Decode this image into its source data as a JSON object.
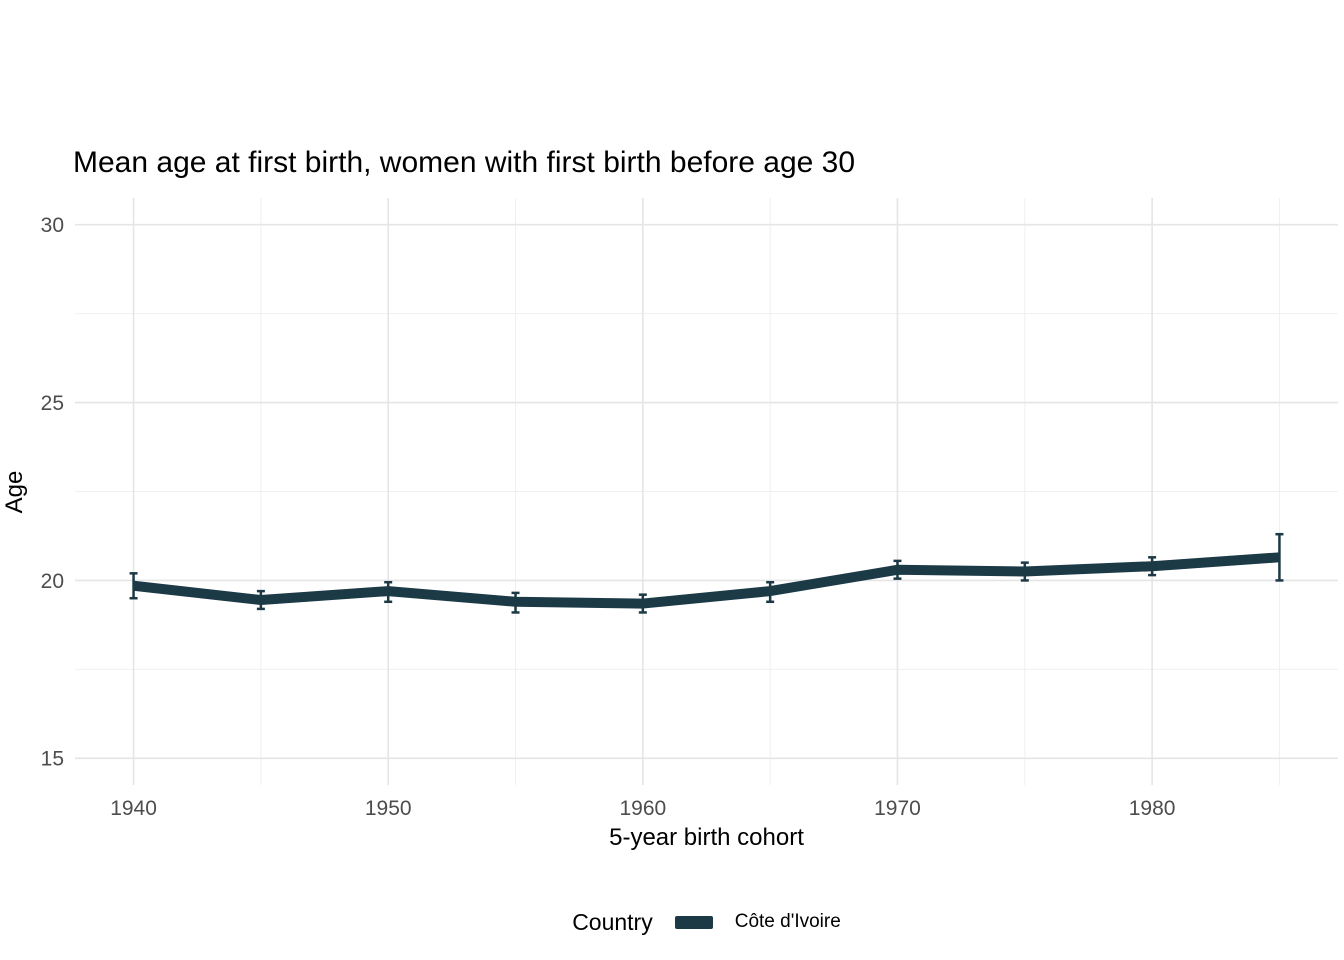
{
  "chart_data": {
    "type": "line",
    "title": "Mean age at first birth, women with first birth before age 30",
    "xlabel": "5-year birth cohort",
    "ylabel": "Age",
    "legend_title": "Country",
    "legend_position": "bottom",
    "grid": true,
    "x": [
      1940,
      1945,
      1950,
      1955,
      1960,
      1965,
      1970,
      1975,
      1980,
      1985
    ],
    "series": [
      {
        "name": "Côte d'Ivoire",
        "values": [
          19.85,
          19.45,
          19.7,
          19.4,
          19.35,
          19.7,
          20.3,
          20.25,
          20.4,
          20.65
        ],
        "ci_low": [
          19.5,
          19.2,
          19.4,
          19.1,
          19.1,
          19.4,
          20.05,
          20.0,
          20.15,
          20.0
        ],
        "ci_high": [
          20.2,
          19.7,
          19.95,
          19.65,
          19.6,
          19.95,
          20.55,
          20.5,
          20.65,
          21.3
        ],
        "color": "#1c3a46"
      }
    ],
    "xlim": [
      1937.7,
      1987.3
    ],
    "ylim": [
      14.25,
      30.75
    ],
    "x_ticks": {
      "major": [
        1940,
        1950,
        1960,
        1970,
        1980
      ],
      "minor": [
        1945,
        1955,
        1965,
        1975,
        1985
      ]
    },
    "y_ticks": {
      "major": [
        15,
        20,
        25,
        30
      ],
      "minor": [
        17.5,
        22.5,
        27.5
      ]
    }
  },
  "style": {
    "background": "#ffffff",
    "grid_major_color": "#e5e5e5",
    "grid_minor_color": "#f0f0f0",
    "tick_label_color": "#4d4d4d",
    "text_color": "#000000"
  }
}
